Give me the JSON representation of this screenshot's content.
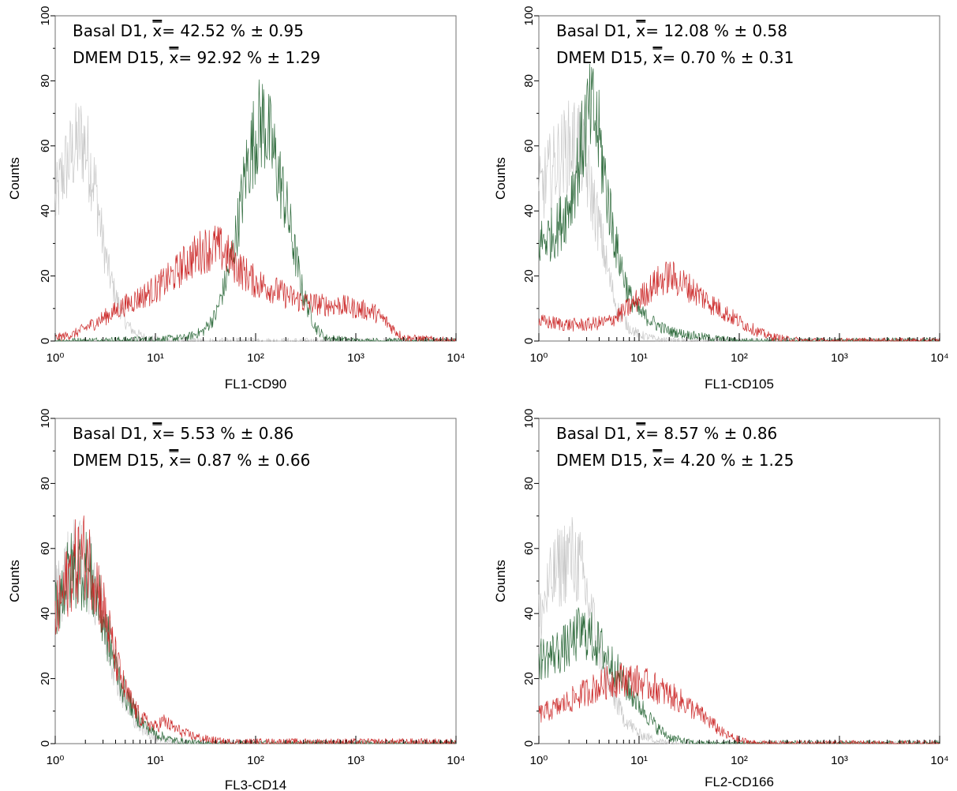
{
  "figure": {
    "colors": {
      "isotype": "#c8c8c8",
      "dmem": "#2e6b3c",
      "basal": "#cc2a2a"
    }
  },
  "chart_data": [
    {
      "type": "line",
      "xscale": "log",
      "xlim": [
        1,
        10000
      ],
      "ylim": [
        0,
        100
      ],
      "xticks": [
        1,
        10,
        100,
        1000,
        10000
      ],
      "yticks": [
        0,
        20,
        40,
        60,
        80,
        100
      ],
      "xlabel": "FL1-CD90",
      "ylabel": "Counts",
      "grid": false,
      "annotations": {
        "line1": {
          "prefix": "Basal D1, ",
          "mean": "x",
          "value": "= 42.52 % ± 0.95"
        },
        "line2": {
          "prefix": "DMEM D15, ",
          "mean": "x",
          "value": "= 92.92 % ± 1.29"
        }
      },
      "series": [
        {
          "role": "isotype",
          "color": "#c8c8c8",
          "x": [
            1,
            1.2,
            1.5,
            1.8,
            2,
            2.5,
            3,
            3.5,
            4,
            5,
            6,
            8,
            10,
            20,
            100,
            10000
          ],
          "y": [
            42,
            52,
            58,
            62,
            60,
            48,
            30,
            20,
            14,
            6,
            3,
            1,
            0.5,
            0,
            0,
            0
          ]
        },
        {
          "role": "dmem",
          "color": "#2e6b3c",
          "x": [
            1,
            10,
            20,
            30,
            40,
            50,
            60,
            70,
            80,
            100,
            120,
            150,
            200,
            250,
            300,
            400,
            500,
            1000,
            10000
          ],
          "y": [
            0,
            0.5,
            1,
            3,
            8,
            18,
            28,
            40,
            52,
            64,
            68,
            58,
            42,
            26,
            14,
            4,
            1,
            0,
            0
          ]
        },
        {
          "role": "basal",
          "color": "#cc2a2a",
          "x": [
            1,
            1.5,
            2,
            3,
            5,
            10,
            15,
            20,
            30,
            40,
            50,
            70,
            100,
            150,
            200,
            300,
            500,
            700,
            1000,
            1500,
            2000,
            2500,
            3000,
            10000
          ],
          "y": [
            1,
            2,
            4,
            7,
            11,
            16,
            20,
            24,
            28,
            29,
            27,
            22,
            18,
            16,
            14,
            12,
            11,
            11,
            10,
            9,
            6,
            3,
            1,
            0
          ]
        }
      ]
    },
    {
      "type": "line",
      "xscale": "log",
      "xlim": [
        1,
        10000
      ],
      "ylim": [
        0,
        100
      ],
      "xticks": [
        1,
        10,
        100,
        1000,
        10000
      ],
      "yticks": [
        0,
        20,
        40,
        60,
        80,
        100
      ],
      "xlabel": "FL1-CD105",
      "ylabel": "Counts",
      "grid": false,
      "annotations": {
        "line1": {
          "prefix": "Basal D1, ",
          "mean": "x",
          "value": "= 12.08 % ± 0.58"
        },
        "line2": {
          "prefix": "DMEM D15, ",
          "mean": "x",
          "value": "= 0.70 % ± 0.31"
        }
      },
      "series": [
        {
          "role": "isotype",
          "color": "#c8c8c8",
          "x": [
            1,
            1.2,
            1.5,
            2,
            2.5,
            3,
            4,
            5,
            6,
            8,
            10,
            15,
            20,
            10000
          ],
          "y": [
            45,
            50,
            55,
            60,
            62,
            52,
            35,
            20,
            10,
            4,
            2,
            0.5,
            0,
            0
          ]
        },
        {
          "role": "dmem",
          "color": "#2e6b3c",
          "x": [
            1,
            1.5,
            2,
            2.5,
            3,
            3.5,
            4,
            5,
            6,
            8,
            10,
            15,
            20,
            30,
            50,
            70,
            100,
            10000
          ],
          "y": [
            30,
            34,
            42,
            55,
            68,
            70,
            62,
            42,
            28,
            14,
            9,
            5,
            3,
            2,
            1,
            0.5,
            0,
            0
          ]
        },
        {
          "role": "basal",
          "color": "#cc2a2a",
          "x": [
            1,
            2,
            3,
            5,
            7,
            10,
            15,
            20,
            30,
            50,
            70,
            100,
            150,
            200,
            300,
            500,
            10000
          ],
          "y": [
            6,
            5,
            5,
            6,
            9,
            13,
            18,
            20,
            17,
            12,
            9,
            6,
            3,
            1.5,
            0.5,
            0,
            0
          ]
        }
      ]
    },
    {
      "type": "line",
      "xscale": "log",
      "xlim": [
        1,
        10000
      ],
      "ylim": [
        0,
        100
      ],
      "xticks": [
        1,
        10,
        100,
        1000,
        10000
      ],
      "yticks": [
        0,
        20,
        40,
        60,
        80,
        100
      ],
      "xlabel": "FL3-CD14",
      "ylabel": "Counts",
      "grid": false,
      "annotations": {
        "line1": {
          "prefix": "Basal D1, ",
          "mean": "x",
          "value": "= 5.53 % ± 0.86"
        },
        "line2": {
          "prefix": "DMEM D15, ",
          "mean": "x",
          "value": "= 0.87 % ± 0.66"
        }
      },
      "series": [
        {
          "role": "isotype",
          "color": "#c8c8c8",
          "x": [
            1,
            1.2,
            1.5,
            2,
            2.5,
            3,
            4,
            5,
            7,
            10,
            15,
            20,
            10000
          ],
          "y": [
            44,
            50,
            56,
            55,
            48,
            38,
            22,
            12,
            5,
            2,
            0.5,
            0,
            0
          ]
        },
        {
          "role": "dmem",
          "color": "#2e6b3c",
          "x": [
            1,
            1.2,
            1.5,
            2,
            2.5,
            3,
            4,
            5,
            7,
            10,
            15,
            20,
            30,
            10000
          ],
          "y": [
            42,
            48,
            54,
            54,
            47,
            38,
            24,
            15,
            7,
            3,
            1,
            0.5,
            0,
            0
          ]
        },
        {
          "role": "basal",
          "color": "#cc2a2a",
          "x": [
            1,
            1.2,
            1.5,
            2,
            2.5,
            3,
            4,
            5,
            7,
            10,
            12,
            15,
            20,
            30,
            50,
            10000
          ],
          "y": [
            38,
            46,
            55,
            58,
            52,
            42,
            26,
            16,
            8,
            5,
            7,
            5,
            3,
            1.5,
            0.5,
            0.5
          ]
        }
      ]
    },
    {
      "type": "line",
      "xscale": "log",
      "xlim": [
        1,
        10000
      ],
      "ylim": [
        0,
        100
      ],
      "xticks": [
        1,
        10,
        100,
        1000,
        10000
      ],
      "yticks": [
        0,
        20,
        40,
        60,
        80,
        100
      ],
      "xlabel": "FL2-CD166",
      "ylabel": "Counts",
      "grid": false,
      "annotations": {
        "line1": {
          "prefix": "Basal D1, ",
          "mean": "x",
          "value": "= 8.57 % ± 0.86"
        },
        "line2": {
          "prefix": "DMEM D15, ",
          "mean": "x",
          "value": "= 4.20 % ± 1.25"
        }
      },
      "series": [
        {
          "role": "isotype",
          "color": "#c8c8c8",
          "x": [
            1,
            1.2,
            1.5,
            2,
            2.5,
            3,
            4,
            5,
            7,
            10,
            15,
            20,
            10000
          ],
          "y": [
            38,
            46,
            53,
            58,
            55,
            46,
            30,
            18,
            8,
            3,
            1,
            0,
            0
          ]
        },
        {
          "role": "dmem",
          "color": "#2e6b3c",
          "x": [
            1,
            1.5,
            2,
            2.5,
            3,
            4,
            5,
            7,
            10,
            15,
            20,
            30,
            40,
            10000
          ],
          "y": [
            26,
            28,
            30,
            34,
            34,
            30,
            26,
            19,
            12,
            5,
            2,
            0.5,
            0,
            0
          ]
        },
        {
          "role": "basal",
          "color": "#cc2a2a",
          "x": [
            1,
            1.5,
            2,
            3,
            5,
            7,
            10,
            15,
            20,
            30,
            50,
            70,
            100,
            150,
            10000
          ],
          "y": [
            9,
            11,
            13,
            16,
            19,
            20,
            19,
            17,
            15,
            12,
            7,
            3,
            1,
            0,
            0
          ]
        }
      ]
    }
  ]
}
